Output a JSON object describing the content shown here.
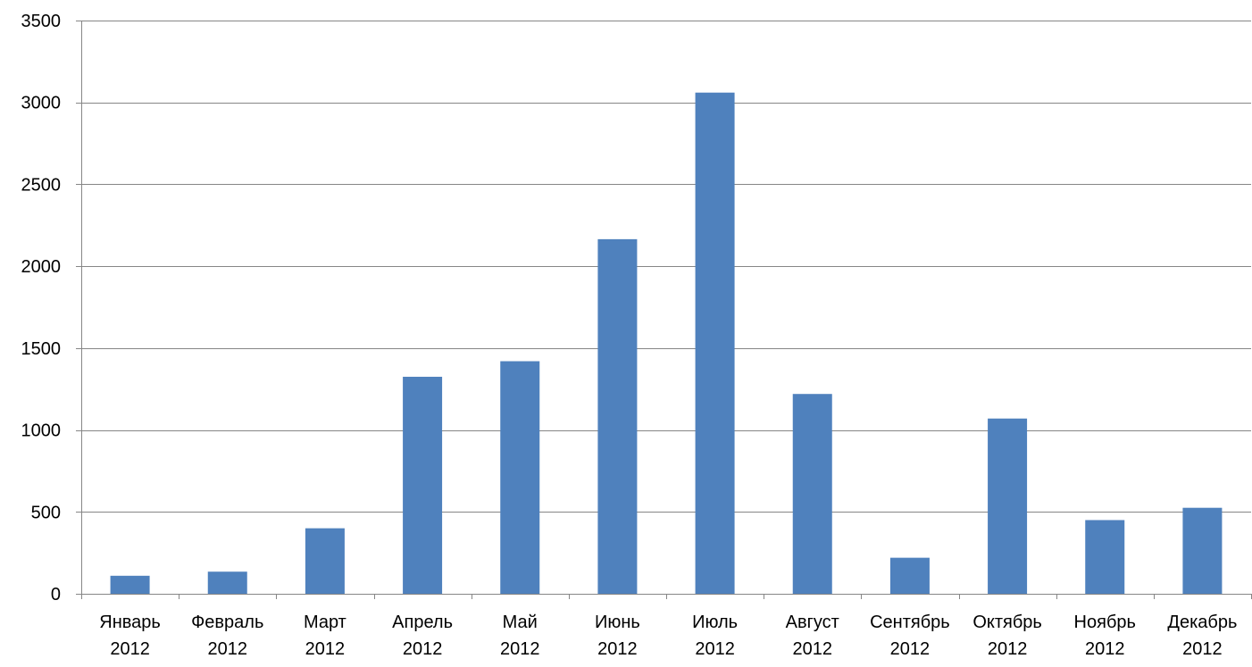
{
  "chart_data": {
    "type": "bar",
    "title": "",
    "xlabel": "",
    "ylabel": "",
    "categories": [
      [
        "Январь",
        "2012"
      ],
      [
        "Февраль",
        "2012"
      ],
      [
        "Март",
        "2012"
      ],
      [
        "Апрель",
        "2012"
      ],
      [
        "Май",
        "2012"
      ],
      [
        "Июнь",
        "2012"
      ],
      [
        "Июль",
        "2012"
      ],
      [
        "Август",
        "2012"
      ],
      [
        "Сентябрь",
        "2012"
      ],
      [
        "Октябрь",
        "2012"
      ],
      [
        "Ноябрь",
        "2012"
      ],
      [
        "Декабрь",
        "2012"
      ]
    ],
    "values": [
      110,
      135,
      400,
      1325,
      1420,
      2165,
      3060,
      1220,
      220,
      1070,
      450,
      525
    ],
    "ylim": [
      0,
      3500
    ],
    "yticks": [
      0,
      500,
      1000,
      1500,
      2000,
      2500,
      3000,
      3500
    ],
    "grid": true,
    "legend": "none",
    "colors": {
      "bar": "#4F81BD",
      "grid": "#868686",
      "axis": "#868686"
    }
  }
}
